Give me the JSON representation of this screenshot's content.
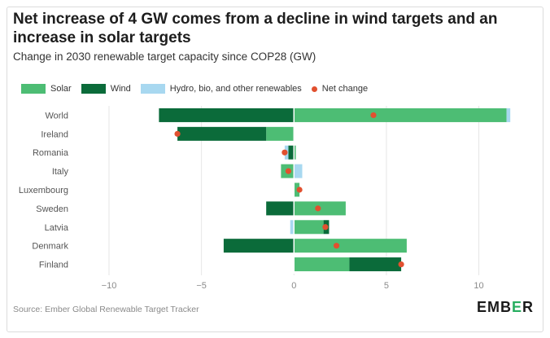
{
  "title": "Net increase of 4 GW comes from a decline in wind targets and an increase in solar targets",
  "subtitle": "Change in 2030 renewable target capacity since COP28 (GW)",
  "source": "Source: Ember Global Renewable Target Tracker",
  "logo": {
    "part1": "EMB",
    "part2": "E",
    "part3": "R"
  },
  "colors": {
    "solar": "#4dbd74",
    "wind": "#0b6b3a",
    "hydro": "#a8d8f0",
    "net": "#e1502f",
    "grid": "#e6e6e6",
    "axis_text": "#8a8a8a",
    "label_text": "#555555"
  },
  "chart_data": {
    "type": "bar",
    "orientation": "horizontal",
    "stacked": true,
    "title": "Net increase of 4 GW comes from a decline in wind targets and an increase in solar targets",
    "xlabel": "Change in 2030 renewable target capacity since COP28 (GW)",
    "ylabel": "",
    "xlim": [
      -10,
      12
    ],
    "xticks": [
      -10,
      -5,
      0,
      5,
      10
    ],
    "xtick_labels": [
      "−10",
      "−5",
      "0",
      "5",
      "10"
    ],
    "categories": [
      "World",
      "Ireland",
      "Romania",
      "Italy",
      "Luxembourg",
      "Sweden",
      "Latvia",
      "Denmark",
      "Finland"
    ],
    "series": [
      {
        "name": "Solar",
        "key": "solar",
        "values": [
          11.5,
          -1.5,
          0.1,
          -0.7,
          0.3,
          2.8,
          1.6,
          6.1,
          3.0
        ]
      },
      {
        "name": "Wind",
        "key": "wind",
        "values": [
          -7.3,
          -4.8,
          -0.3,
          0.0,
          0.0,
          -1.5,
          0.3,
          -3.8,
          2.8
        ]
      },
      {
        "name": "Hydro, bio, and other renewables",
        "key": "hydro",
        "values": [
          0.2,
          0.0,
          -0.2,
          0.45,
          0.0,
          0.0,
          -0.2,
          0.0,
          0.0
        ]
      }
    ],
    "net_change": {
      "name": "Net change",
      "values": [
        4.3,
        -6.3,
        -0.5,
        -0.3,
        0.3,
        1.3,
        1.7,
        2.3,
        5.8
      ]
    }
  }
}
